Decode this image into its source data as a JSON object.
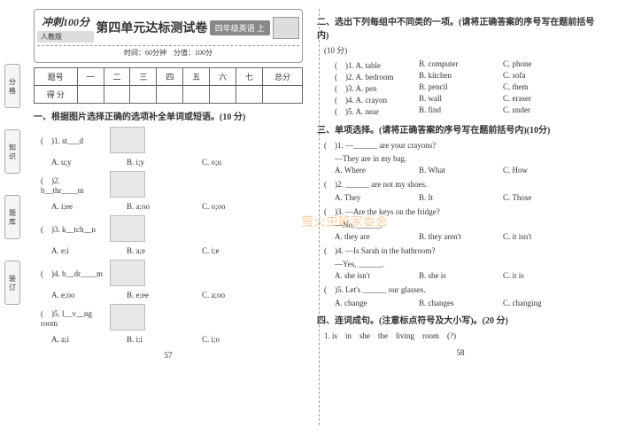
{
  "header": {
    "logo": "冲刺100分",
    "version": "人教版",
    "title": "第四单元达标测试卷",
    "grade": "四年级英语 上",
    "timing": "时间：60分钟　分值：100分"
  },
  "scoreTable": {
    "labels": [
      "题号",
      "一",
      "二",
      "三",
      "四",
      "五",
      "六",
      "七",
      "总分"
    ],
    "row": "得 分"
  },
  "sec1": {
    "title": "一、根据图片选择正确的选项补全单词或短语。(10 分)",
    "items": [
      {
        "n": "(　)1. st___d",
        "a": "A. u;y",
        "b": "B. i;y",
        "c": "C. o;u"
      },
      {
        "n": "(　)2. b__thr____m",
        "a": "A. i;ee",
        "b": "B. a;oo",
        "c": "C. o;oo"
      },
      {
        "n": "(　)3. k__tch__n",
        "a": "A. e;i",
        "b": "B. a;e",
        "c": "C. i;e"
      },
      {
        "n": "(　)4. b__dr____m",
        "a": "A. e;oo",
        "b": "B. e;ee",
        "c": "C. a;oo"
      },
      {
        "n": "(　)5. l__v__ng room",
        "a": "A. a;i",
        "b": "B. i;i",
        "c": "C. i;o"
      }
    ]
  },
  "sec2": {
    "title": "二、选出下列每组中不同类的一项。(请将正确答案的序号写在题前括号内)",
    "pts": "(10 分)",
    "items": [
      {
        "a": "(　)1. A. table",
        "b": "B. computer",
        "c": "C. phone"
      },
      {
        "a": "(　)2. A. bedroom",
        "b": "B. kitchen",
        "c": "C. sofa"
      },
      {
        "a": "(　)3. A. pen",
        "b": "B. pencil",
        "c": "C. them"
      },
      {
        "a": "(　)4. A. crayon",
        "b": "B. wall",
        "c": "C. eraser"
      },
      {
        "a": "(　)5. A. near",
        "b": "B. find",
        "c": "C. under"
      }
    ]
  },
  "sec3": {
    "title": "三、单项选择。(请将正确答案的序号写在题前括号内)(10分)",
    "items": [
      {
        "q": "(　)1. —______ are your crayons?",
        "ans": "—They are in my bag.",
        "a": "A. Where",
        "b": "B. What",
        "c": "C. How"
      },
      {
        "q": "(　)2. ______ are not my shoes.",
        "a": "A. They",
        "b": "B. It",
        "c": "C. Those"
      },
      {
        "q": "(　)3. —Are the keys on the fridge?",
        "ans": "—No, ______.",
        "a": "A. they are",
        "b": "B. they aren't",
        "c": "C. it isn't"
      },
      {
        "q": "(　)4. —Is Sarah in the bathroom?",
        "ans": "—Yes, ______.",
        "a": "A. she isn't",
        "b": "B. she is",
        "c": "C. it is"
      },
      {
        "q": "(　)5. Let's ______ our glasses.",
        "a": "A. change",
        "b": "B. changes",
        "c": "C. changing"
      }
    ]
  },
  "sec4": {
    "title": "四、连词成句。(注意标点符号及大小写)。(20 分)",
    "q1": "1. is　in　she　the　living　room　(?)"
  },
  "pg": {
    "l": "57",
    "r": "58"
  },
  "wm": "萤火虫班家委会",
  "tabs": [
    "分 格",
    "知 识",
    "题 库",
    "装 订"
  ]
}
